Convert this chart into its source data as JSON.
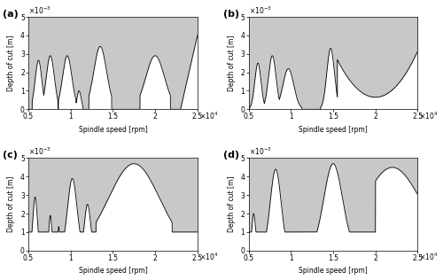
{
  "fig_width": 5.0,
  "fig_height": 3.16,
  "dpi": 100,
  "xlim": [
    5000,
    25000
  ],
  "ylim": [
    0,
    0.005
  ],
  "xlabel": "Spindle speed [rpm]",
  "ylabel": "Depth of cut [m]",
  "fill_color": "#c8c8c8",
  "line_color": "#000000",
  "background_color": "#ffffff",
  "panels": [
    "(a)",
    "(b)",
    "(c)",
    "(d)"
  ],
  "tick_label_fontsize": 5.5,
  "axis_label_fontsize": 5.5,
  "panel_label_fontsize": 8
}
